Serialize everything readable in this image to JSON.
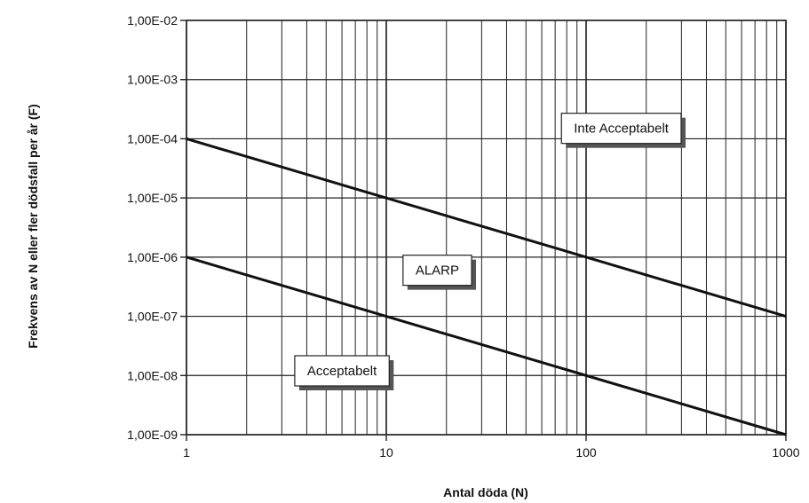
{
  "chart_data": {
    "type": "line",
    "xlabel": "Antal döda (N)",
    "ylabel": "Frekvens av N eller fler dödsfall per år (F)",
    "xscale": "log",
    "yscale": "log",
    "xlim": [
      1,
      1000
    ],
    "ylim": [
      1e-09,
      0.01
    ],
    "grid": true,
    "x_ticks": [
      1,
      10,
      100,
      1000
    ],
    "x_tick_labels": [
      "1",
      "10",
      "100",
      "1000"
    ],
    "y_ticks": [
      0.01,
      0.001,
      0.0001,
      1e-05,
      1e-06,
      1e-07,
      1e-08,
      1e-09
    ],
    "y_tick_labels": [
      "1,00E-02",
      "1,00E-03",
      "1,00E-04",
      "1,00E-05",
      "1,00E-06",
      "1,00E-07",
      "1,00E-08",
      "1,00E-09"
    ],
    "series": [
      {
        "x": [
          1,
          1000
        ],
        "y": [
          0.0001,
          1e-07
        ]
      },
      {
        "x": [
          1,
          1000
        ],
        "y": [
          1e-06,
          1e-09
        ]
      }
    ],
    "annotations": [
      {
        "text": "Inte Acceptabelt",
        "x": 150,
        "y": 0.00015
      },
      {
        "text": "ALARP",
        "x": 18,
        "y": 6e-07
      },
      {
        "text": "Acceptabelt",
        "x": 6,
        "y": 1.2e-08
      }
    ],
    "line_color": "#111111",
    "grid_color": "#222222"
  }
}
